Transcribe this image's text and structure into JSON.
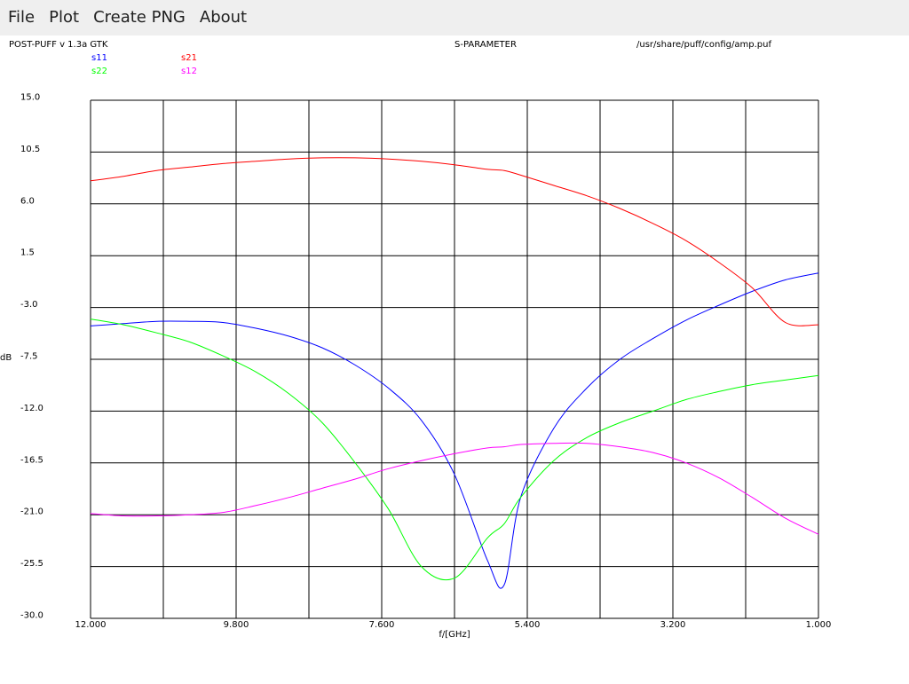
{
  "menu": {
    "items": [
      "File",
      "Plot",
      "Create PNG",
      "About"
    ]
  },
  "header": {
    "program": "POST-PUFF v 1.3a GTK",
    "plot_type": "S-PARAMETER",
    "file_path": "/usr/share/puff/config/amp.puf"
  },
  "colors": {
    "s11": "#0000ff",
    "s21": "#ff0000",
    "s22": "#00ff00",
    "s12": "#ff00ff"
  },
  "chart_data": {
    "type": "line",
    "title": "S-PARAMETER",
    "xlabel": "f/[GHz]",
    "ylabel": "dB",
    "xlim": [
      12.0,
      1.0
    ],
    "ylim": [
      -30.0,
      15.0
    ],
    "x_reversed": true,
    "x_ticks": [
      "12.000",
      "9.800",
      "7.600",
      "5.400",
      "3.200",
      "1.000"
    ],
    "y_ticks": [
      "15.0",
      "10.5",
      "6.0",
      "1.5",
      "-3.0",
      "-7.5",
      "-12.0",
      "-16.5",
      "-21.0",
      "-25.5",
      "-30.0"
    ],
    "grid": true,
    "legend_position": "top-left",
    "x": [
      12.0,
      11.5,
      11.0,
      10.5,
      10.0,
      9.5,
      9.0,
      8.5,
      8.0,
      7.5,
      7.0,
      6.5,
      6.0,
      5.75,
      5.5,
      5.0,
      4.5,
      4.0,
      3.5,
      3.0,
      2.5,
      2.0,
      1.5,
      1.0
    ],
    "series": [
      {
        "name": "s11",
        "color": "#0000ff",
        "values": [
          -4.6,
          -4.4,
          -4.2,
          -4.2,
          -4.3,
          -4.8,
          -5.5,
          -6.5,
          -8.0,
          -10.0,
          -12.8,
          -17.5,
          -25.0,
          -27.1,
          -19.5,
          -13.5,
          -10.0,
          -7.5,
          -5.7,
          -4.1,
          -2.8,
          -1.6,
          -0.6,
          0.0
        ]
      },
      {
        "name": "s21",
        "color": "#ff0000",
        "values": [
          8.0,
          8.4,
          8.9,
          9.2,
          9.5,
          9.7,
          9.9,
          10.0,
          10.0,
          9.9,
          9.7,
          9.4,
          9.0,
          8.9,
          8.5,
          7.6,
          6.7,
          5.6,
          4.3,
          2.8,
          0.9,
          -1.3,
          -4.3,
          -4.5
        ]
      },
      {
        "name": "s22",
        "color": "#00ff00",
        "values": [
          -4.0,
          -4.5,
          -5.2,
          -6.0,
          -7.2,
          -8.6,
          -10.5,
          -13.0,
          -16.5,
          -20.5,
          -25.5,
          -26.5,
          -23.0,
          -21.8,
          -19.5,
          -16.3,
          -14.3,
          -13.0,
          -12.0,
          -11.0,
          -10.3,
          -9.7,
          -9.3,
          -8.9
        ]
      },
      {
        "name": "s12",
        "color": "#ff00ff",
        "values": [
          -20.9,
          -21.1,
          -21.1,
          -21.0,
          -20.8,
          -20.2,
          -19.5,
          -18.7,
          -17.9,
          -17.0,
          -16.3,
          -15.7,
          -15.2,
          -15.1,
          -14.9,
          -14.8,
          -14.8,
          -15.1,
          -15.6,
          -16.5,
          -17.8,
          -19.5,
          -21.3,
          -22.7
        ]
      }
    ]
  }
}
